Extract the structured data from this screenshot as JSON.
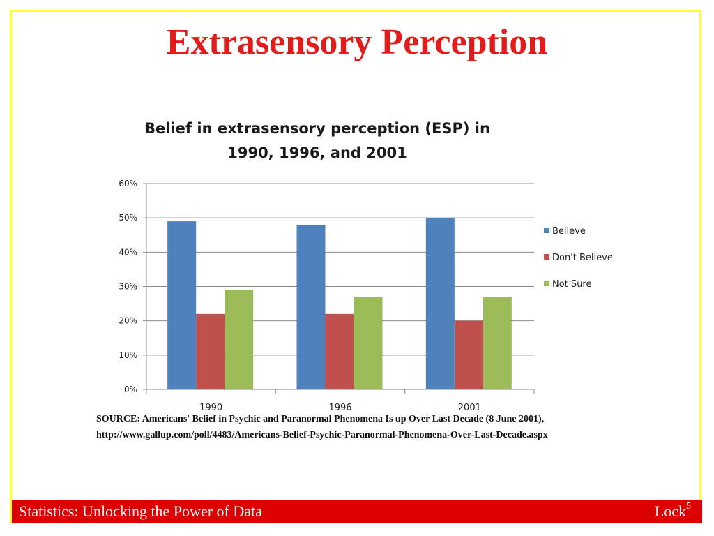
{
  "slide": {
    "title": "Extrasensory Perception",
    "source_line1": "SOURCE: Americans' Belief in Psychic and Paranormal Phenomena Is up Over Last Decade (8 June 2001),",
    "source_line2": "http://www.gallup.com/poll/4483/Americans-Belief-Psychic-Paranormal-Phenomena-Over-Last-Decade.aspx",
    "footer_left": "Statistics: Unlocking the Power of Data",
    "footer_right": "Lock",
    "footer_sup": "5",
    "colors": {
      "title": "#e31b1b",
      "border": "#ffff33",
      "footer": "#dd0000"
    }
  },
  "chart_data": {
    "type": "bar",
    "title_line1": "Belief in extrasensory perception (ESP) in",
    "title_line2": "1990, 1996, and 2001",
    "categories": [
      "1990",
      "1996",
      "2001"
    ],
    "series": [
      {
        "name": "Believe",
        "values": [
          49,
          48,
          50
        ],
        "color": "#4f81bd"
      },
      {
        "name": "Don't Believe",
        "values": [
          22,
          22,
          20
        ],
        "color": "#c0504d"
      },
      {
        "name": "Not Sure",
        "values": [
          29,
          27,
          27
        ],
        "color": "#9bbb59"
      }
    ],
    "yticks": [
      "0%",
      "10%",
      "20%",
      "30%",
      "40%",
      "50%",
      "60%"
    ],
    "ylim": [
      0,
      60
    ],
    "grid": true,
    "legend_position": "right"
  }
}
